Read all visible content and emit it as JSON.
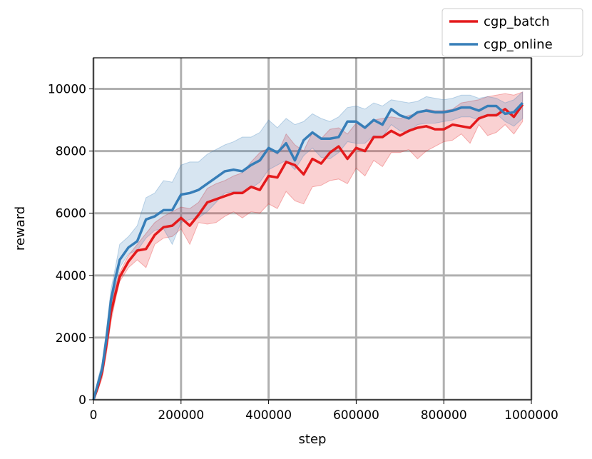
{
  "chart_data": {
    "type": "line",
    "xlabel": "step",
    "ylabel": "reward",
    "xlim": [
      0,
      1000000
    ],
    "ylim": [
      0,
      11000
    ],
    "xticks": [
      0,
      200000,
      400000,
      600000,
      800000,
      1000000
    ],
    "xtick_labels": [
      "0",
      "200000",
      "400000",
      "600000",
      "800000",
      "1000000"
    ],
    "yticks": [
      0,
      2000,
      4000,
      6000,
      8000,
      10000
    ],
    "ytick_labels": [
      "0",
      "2000",
      "4000",
      "6000",
      "8000",
      "10000"
    ],
    "grid": true,
    "legend_position": "top-right",
    "x": [
      0,
      10000,
      20000,
      30000,
      40000,
      50000,
      60000,
      80000,
      100000,
      120000,
      140000,
      160000,
      180000,
      200000,
      220000,
      240000,
      260000,
      280000,
      300000,
      320000,
      340000,
      360000,
      380000,
      400000,
      420000,
      440000,
      460000,
      480000,
      500000,
      520000,
      540000,
      560000,
      580000,
      600000,
      620000,
      640000,
      660000,
      680000,
      700000,
      720000,
      740000,
      760000,
      780000,
      800000,
      820000,
      840000,
      860000,
      880000,
      900000,
      920000,
      940000,
      960000,
      980000
    ],
    "series": [
      {
        "name": "cgp_batch",
        "color": "#e41a1c",
        "values": [
          0,
          400,
          900,
          1800,
          2800,
          3400,
          3950,
          4450,
          4800,
          4850,
          5300,
          5550,
          5600,
          5850,
          5600,
          5950,
          6350,
          6450,
          6550,
          6650,
          6650,
          6850,
          6750,
          7200,
          7150,
          7650,
          7550,
          7250,
          7750,
          7600,
          7950,
          8150,
          7750,
          8100,
          8000,
          8450,
          8450,
          8650,
          8500,
          8650,
          8750,
          8800,
          8700,
          8700,
          8850,
          8800,
          8750,
          9050,
          9150,
          9150,
          9350,
          9100,
          9500
        ],
        "lower": [
          0,
          300,
          700,
          1500,
          2500,
          3200,
          3800,
          4250,
          4500,
          4250,
          5000,
          5200,
          5250,
          5500,
          5000,
          5700,
          5650,
          5700,
          5900,
          6050,
          5850,
          6050,
          6000,
          6300,
          6150,
          6700,
          6400,
          6300,
          6850,
          6900,
          7050,
          7100,
          6950,
          7450,
          7200,
          7700,
          7500,
          7950,
          7950,
          8050,
          7750,
          8000,
          8150,
          8300,
          8350,
          8550,
          8250,
          8850,
          8500,
          8600,
          8850,
          8550,
          8950
        ],
        "upper": [
          0,
          500,
          1100,
          2100,
          3100,
          3650,
          4100,
          4650,
          5000,
          5350,
          5700,
          5900,
          6050,
          6200,
          6150,
          6350,
          6800,
          6950,
          7050,
          7200,
          7300,
          7650,
          7950,
          8100,
          7900,
          8550,
          8200,
          8000,
          8600,
          8400,
          8700,
          8750,
          8550,
          8900,
          8800,
          9000,
          9050,
          9100,
          9050,
          9150,
          9200,
          9350,
          9300,
          9300,
          9350,
          9550,
          9600,
          9650,
          9750,
          9800,
          9850,
          9800,
          9900
        ]
      },
      {
        "name": "cgp_online",
        "color": "#377eb8",
        "values": [
          0,
          500,
          1000,
          2000,
          3200,
          3900,
          4500,
          4900,
          5100,
          5800,
          5900,
          6100,
          6100,
          6600,
          6650,
          6750,
          6950,
          7150,
          7350,
          7400,
          7350,
          7550,
          7700,
          8100,
          7950,
          8250,
          7700,
          8350,
          8600,
          8400,
          8400,
          8450,
          8950,
          8950,
          8750,
          9000,
          8850,
          9350,
          9150,
          9050,
          9250,
          9300,
          9250,
          9250,
          9300,
          9400,
          9400,
          9300,
          9450,
          9450,
          9200,
          9250,
          9550
        ],
        "lower": [
          0,
          350,
          800,
          1750,
          2900,
          3600,
          4250,
          4700,
          4800,
          5200,
          5450,
          5500,
          5000,
          5700,
          5800,
          5850,
          6050,
          6350,
          6650,
          6700,
          6700,
          6800,
          7000,
          7400,
          7550,
          7700,
          7400,
          7850,
          8100,
          7800,
          7750,
          7950,
          8300,
          8250,
          8250,
          8500,
          8450,
          8850,
          8650,
          8600,
          8850,
          8900,
          8900,
          8950,
          9000,
          9100,
          9100,
          9000,
          9150,
          9200,
          8950,
          8800,
          9050
        ],
        "upper": [
          0,
          650,
          1200,
          2300,
          3550,
          4250,
          5000,
          5250,
          5600,
          6500,
          6650,
          7050,
          7000,
          7550,
          7650,
          7650,
          7900,
          8050,
          8200,
          8300,
          8450,
          8450,
          8600,
          9000,
          8750,
          9050,
          8850,
          8950,
          9200,
          9050,
          8950,
          9100,
          9400,
          9450,
          9350,
          9550,
          9450,
          9650,
          9600,
          9550,
          9600,
          9750,
          9700,
          9650,
          9700,
          9800,
          9800,
          9700,
          9750,
          9700,
          9550,
          9650,
          9900
        ]
      }
    ]
  }
}
